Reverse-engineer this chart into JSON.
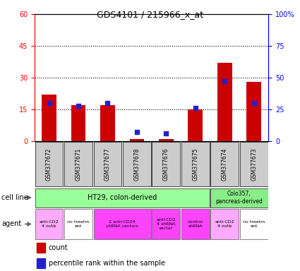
{
  "title": "GDS4101 / 215966_x_at",
  "samples": [
    "GSM377672",
    "GSM377671",
    "GSM377677",
    "GSM377678",
    "GSM377676",
    "GSM377675",
    "GSM377674",
    "GSM377673"
  ],
  "counts": [
    22,
    17,
    17,
    1,
    1,
    15,
    37,
    28
  ],
  "percentiles": [
    30,
    28,
    30,
    7,
    6,
    26,
    47,
    30
  ],
  "ylim_left": [
    0,
    60
  ],
  "ylim_right": [
    0,
    100
  ],
  "yticks_left": [
    0,
    15,
    30,
    45,
    60
  ],
  "yticks_right": [
    0,
    25,
    50,
    75,
    100
  ],
  "ytick_labels_right": [
    "0",
    "25",
    "50",
    "75",
    "100%"
  ],
  "bar_color": "#cc0000",
  "dot_color": "#2222cc",
  "sample_bg_color": "#cccccc",
  "cell_line_ht29_color": "#99ff99",
  "cell_line_colo_color": "#88ee88",
  "cell_line_ht29": "HT29, colon-derived",
  "cell_line_colo": "Colo357,\npancreas-derived",
  "agent_data": [
    [
      0,
      1,
      "#ffaaff",
      "anti-CD2\n4 mAb"
    ],
    [
      1,
      2,
      "#ffffff",
      "no treatm\nent"
    ],
    [
      2,
      4,
      "#ff44ff",
      "2 anti-CD24\nshRNA vectors"
    ],
    [
      4,
      5,
      "#ff44ff",
      "anti-CD2\n4 shRNA\nvector"
    ],
    [
      5,
      6,
      "#ff44ff",
      "control\nshRNA"
    ],
    [
      6,
      7,
      "#ffaaff",
      "anti-CD2\n4 mAb"
    ],
    [
      7,
      8,
      "#ffffff",
      "no treatm\nent"
    ]
  ],
  "bg_color": "#ffffff"
}
